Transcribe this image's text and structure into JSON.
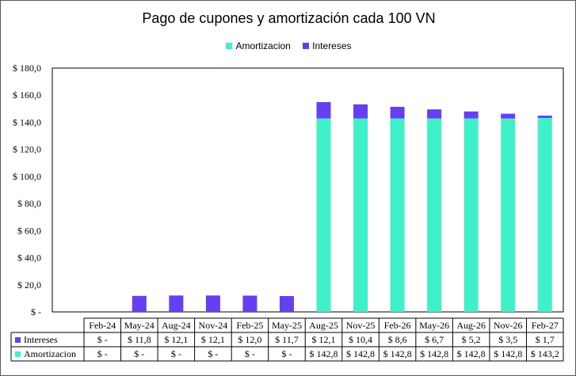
{
  "chart_data": {
    "type": "bar",
    "stacked": true,
    "title": "Pago de cupones y amortización cada 100 VN",
    "ylim": [
      0,
      180
    ],
    "y_ticks": [
      "$ -",
      "$ 20,0",
      "$ 40,0",
      "$ 60,0",
      "$ 80,0",
      "$ 100,0",
      "$ 120,0",
      "$ 140,0",
      "$ 160,0",
      "$ 180,0"
    ],
    "legend_position": "top",
    "grid": false,
    "categories": [
      "Feb-24",
      "May-24",
      "Aug-24",
      "Nov-24",
      "Feb-25",
      "May-25",
      "Aug-25",
      "Nov-25",
      "Feb-26",
      "May-26",
      "Aug-26",
      "Nov-26",
      "Feb-27"
    ],
    "series": [
      {
        "name": "Amortizacion",
        "color": "#40F0C8",
        "values": [
          0,
          0,
          0,
          0,
          0,
          0,
          142.8,
          142.8,
          142.8,
          142.8,
          142.8,
          142.8,
          143.2
        ],
        "labels": [
          "$ -",
          "$ -",
          "$ -",
          "$ -",
          "$ -",
          "$ -",
          "$ 142,8",
          "$ 142,8",
          "$ 142,8",
          "$ 142,8",
          "$ 142,8",
          "$ 142,8",
          "$ 143,2"
        ]
      },
      {
        "name": "Intereses",
        "color": "#6640F0",
        "values": [
          0,
          11.8,
          12.1,
          12.1,
          12.0,
          11.7,
          12.1,
          10.4,
          8.6,
          6.7,
          5.2,
          3.5,
          1.7
        ],
        "labels": [
          "$ -",
          "$ 11,8",
          "$ 12,1",
          "$ 12,1",
          "$ 12,0",
          "$ 11,7",
          "$ 12,1",
          "$ 10,4",
          "$ 8,6",
          "$ 6,7",
          "$ 5,2",
          "$ 3,5",
          "$ 1,7"
        ]
      }
    ],
    "table_row_order": [
      "Intereses",
      "Amortizacion"
    ]
  }
}
